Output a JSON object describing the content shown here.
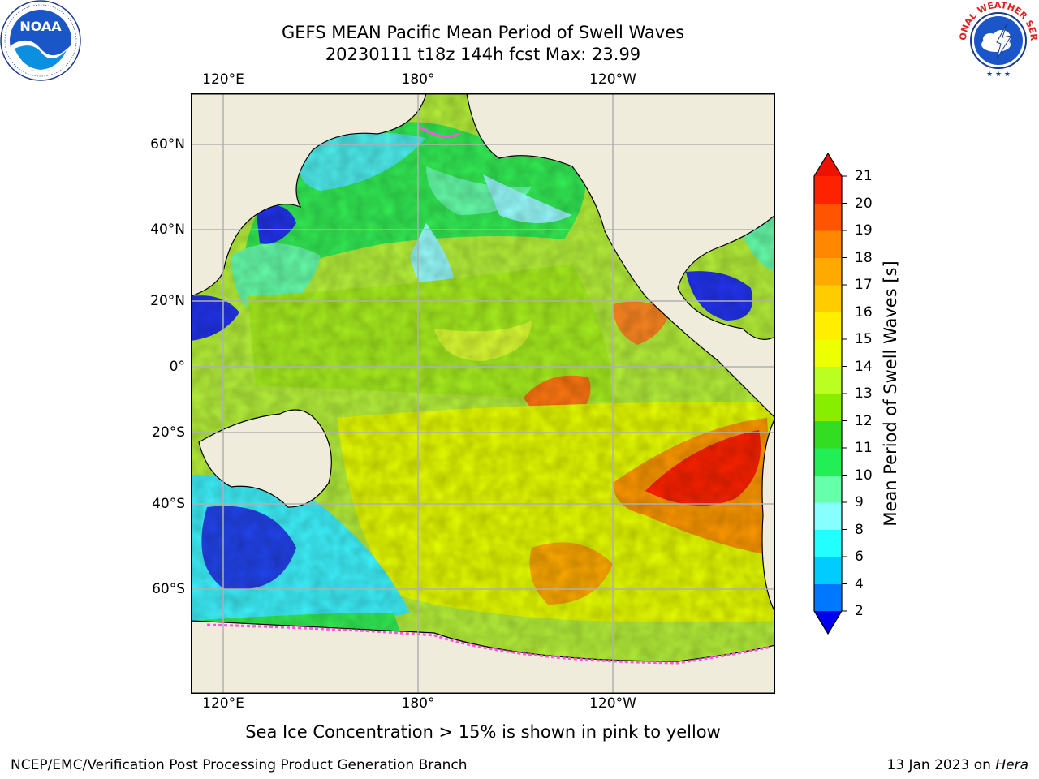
{
  "header": {
    "title_line1": "GEFS MEAN Pacific Mean Period of Swell Waves",
    "title_line2": "20230111 t18z 144h fcst   Max: 23.99"
  },
  "map": {
    "top_lon_labels": [
      "120°E",
      "180°",
      "120°W"
    ],
    "bottom_lon_labels": [
      "120°E",
      "180°",
      "120°W"
    ],
    "lat_labels": [
      "60°N",
      "40°N",
      "20°N",
      "0°",
      "20°S",
      "40°S",
      "60°S"
    ],
    "land_color": "#efecdc",
    "grid_color": "#b0b0b0"
  },
  "colorbar": {
    "label": "Mean Period of Swell Waves [s]",
    "ticks": [
      "2",
      "4",
      "6",
      "8",
      "9",
      "10",
      "11",
      "12",
      "13",
      "14",
      "15",
      "16",
      "17",
      "18",
      "19",
      "20",
      "21"
    ],
    "colors": [
      "#0022ee",
      "#0077ff",
      "#00ccff",
      "#22ffff",
      "#88ffff",
      "#66ffaa",
      "#22ee55",
      "#33dd22",
      "#88ee00",
      "#bbff22",
      "#eeff00",
      "#ffee00",
      "#ffcc00",
      "#ffaa00",
      "#ff8800",
      "#ff5500",
      "#ff2200"
    ],
    "under_color": "#0000ee",
    "over_color": "#ee1100"
  },
  "footer": {
    "sea_ice_note": "Sea Ice Concentration > 15% is shown in pink to yellow",
    "credit": "NCEP/EMC/Verification Post Processing Product Generation Branch",
    "date_prefix": "13 Jan 2023 on ",
    "machine": "Hera"
  },
  "logos": {
    "noaa_text": "NOAA",
    "nws_text": "NATIONAL WEATHER SERVICE"
  }
}
